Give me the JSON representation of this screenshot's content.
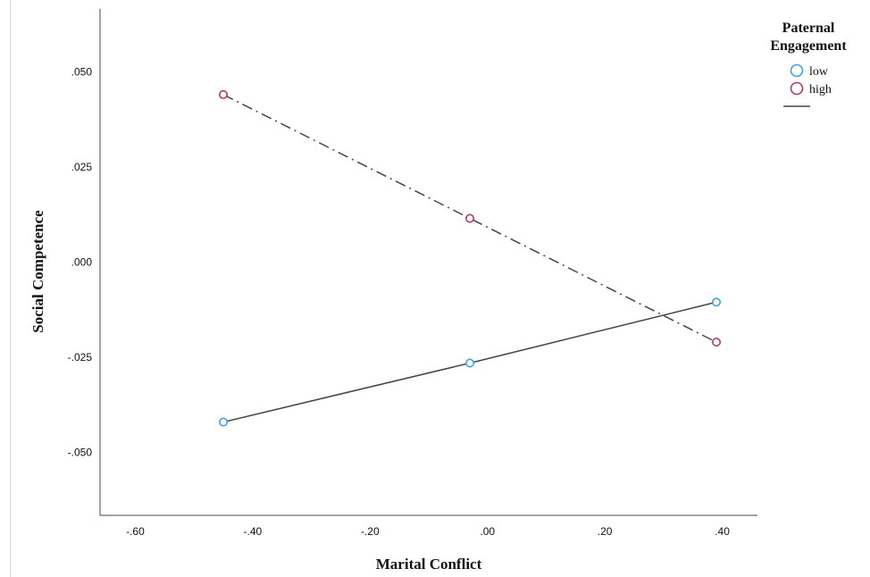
{
  "chart_data": {
    "type": "line",
    "xlabel": "Marital Conflict",
    "ylabel": "Social Competence",
    "xlim": [
      -0.66,
      0.46
    ],
    "ylim": [
      -0.0665,
      0.0665
    ],
    "x_ticks": [
      -0.6,
      -0.4,
      -0.2,
      0.0,
      0.2,
      0.4
    ],
    "x_tick_labels": [
      "-.60",
      "-.40",
      "-.20",
      ".00",
      ".20",
      ".40"
    ],
    "y_ticks": [
      0.05,
      0.025,
      0.0,
      -0.025,
      -0.05
    ],
    "y_tick_labels": [
      ".050",
      ".025",
      ".000",
      "-.025",
      "-.050"
    ],
    "grid": false,
    "legend": {
      "title_line1": "Paternal",
      "title_line2": "Engagement",
      "position": "top-right"
    },
    "series": [
      {
        "name": "low",
        "color": "#3fa4e0",
        "line_style": "solid",
        "x": [
          -0.45,
          -0.03,
          0.39
        ],
        "y": [
          -0.042,
          -0.0265,
          -0.0105
        ]
      },
      {
        "name": "high",
        "color": "#b23a6a",
        "line_style": "dash-dot",
        "x": [
          -0.45,
          -0.03,
          0.39
        ],
        "y": [
          0.044,
          0.0115,
          -0.021
        ]
      }
    ]
  }
}
